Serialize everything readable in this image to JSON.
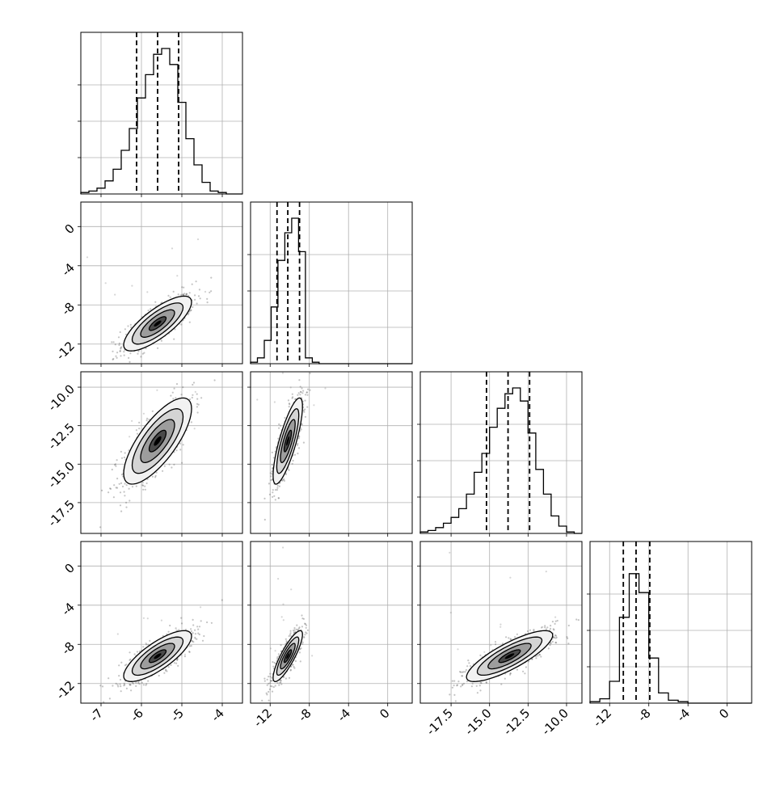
{
  "chart_data": {
    "type": "corner",
    "grid": true,
    "quantile_lines": "dashed",
    "parameters": [
      {
        "label": "",
        "range": [
          -7.5,
          -3.5
        ],
        "ticks": [
          "-7",
          "-6",
          "-5",
          "-4"
        ],
        "tick_values": [
          -7,
          -6,
          -5,
          -4
        ],
        "quantiles": [
          -6.12,
          -5.6,
          -5.08
        ],
        "hist_edges": [
          -7.5,
          -7.3,
          -7.1,
          -6.9,
          -6.7,
          -6.5,
          -6.3,
          -6.1,
          -5.9,
          -5.7,
          -5.5,
          -5.3,
          -5.1,
          -4.9,
          -4.7,
          -4.5,
          -4.3,
          -4.1,
          -3.9,
          -3.7
        ],
        "hist_counts": [
          0.01,
          0.02,
          0.04,
          0.09,
          0.17,
          0.3,
          0.45,
          0.66,
          0.82,
          0.96,
          1.0,
          0.89,
          0.63,
          0.38,
          0.2,
          0.08,
          0.02,
          0.01,
          0.0
        ]
      },
      {
        "label": "",
        "range": [
          -14.0,
          2.5
        ],
        "ticks": [
          "-12",
          "-8",
          "-4",
          "0"
        ],
        "tick_values": [
          -12,
          -8,
          -4,
          0
        ],
        "quantiles": [
          -11.3,
          -10.2,
          -9.0
        ],
        "hist_edges": [
          -14.0,
          -13.3,
          -12.6,
          -11.9,
          -11.2,
          -10.5,
          -9.8,
          -9.1,
          -8.4,
          -7.7,
          -7.0,
          -6.3,
          -5.6
        ],
        "hist_counts": [
          0.01,
          0.04,
          0.16,
          0.39,
          0.71,
          0.9,
          1.0,
          0.77,
          0.04,
          0.01,
          0.0,
          0.0
        ]
      },
      {
        "label": "",
        "range": [
          -19.5,
          -9.0
        ],
        "ticks": [
          "-17.5",
          "-15.0",
          "-12.5",
          "-10.0"
        ],
        "tick_values": [
          -17.5,
          -15.0,
          -12.5,
          -10.0
        ],
        "quantiles": [
          -15.2,
          -13.8,
          -12.4
        ],
        "hist_edges": [
          -19.5,
          -19.0,
          -18.5,
          -18.0,
          -17.5,
          -17.0,
          -16.5,
          -16.0,
          -15.5,
          -15.0,
          -14.5,
          -14.0,
          -13.5,
          -13.0,
          -12.5,
          -12.0,
          -11.5,
          -11.0,
          -10.5,
          -10.0,
          -9.5
        ],
        "hist_counts": [
          0.01,
          0.02,
          0.04,
          0.07,
          0.11,
          0.17,
          0.27,
          0.42,
          0.55,
          0.73,
          0.86,
          0.96,
          1.0,
          0.91,
          0.69,
          0.44,
          0.27,
          0.12,
          0.05,
          0.01
        ]
      },
      {
        "label": "",
        "range": [
          -14.0,
          2.5
        ],
        "ticks": [
          "-12",
          "-8",
          "-4",
          "0"
        ],
        "tick_values": [
          -12,
          -8,
          -4,
          0
        ],
        "quantiles": [
          -10.6,
          -9.3,
          -7.9
        ],
        "hist_edges": [
          -14.0,
          -13.0,
          -12.0,
          -11.0,
          -10.0,
          -9.0,
          -8.0,
          -7.0,
          -6.0,
          -5.0,
          -4.0,
          -3.0
        ],
        "hist_counts": [
          0.01,
          0.03,
          0.15,
          0.59,
          0.89,
          0.76,
          0.31,
          0.07,
          0.02,
          0.01,
          0.0
        ]
      }
    ],
    "correlations": {
      "1-0": {
        "center": [
          -5.6,
          -9.9
        ],
        "sx": 0.42,
        "sy": 1.4,
        "rho": 0.78
      },
      "2-0": {
        "center": [
          -5.6,
          -13.5
        ],
        "sx": 0.42,
        "sy": 1.4,
        "rho": 0.75
      },
      "2-1": {
        "center": [
          -10.2,
          -13.5
        ],
        "sx": 0.75,
        "sy": 1.4,
        "rho": 0.8
      },
      "3-0": {
        "center": [
          -5.6,
          -9.2
        ],
        "sx": 0.42,
        "sy": 1.3,
        "rho": 0.78
      },
      "3-1": {
        "center": [
          -10.2,
          -9.2
        ],
        "sx": 0.75,
        "sy": 1.3,
        "rho": 0.85
      },
      "3-2": {
        "center": [
          -13.7,
          -9.2
        ],
        "sx": 1.4,
        "sy": 1.3,
        "rho": 0.82
      }
    }
  }
}
